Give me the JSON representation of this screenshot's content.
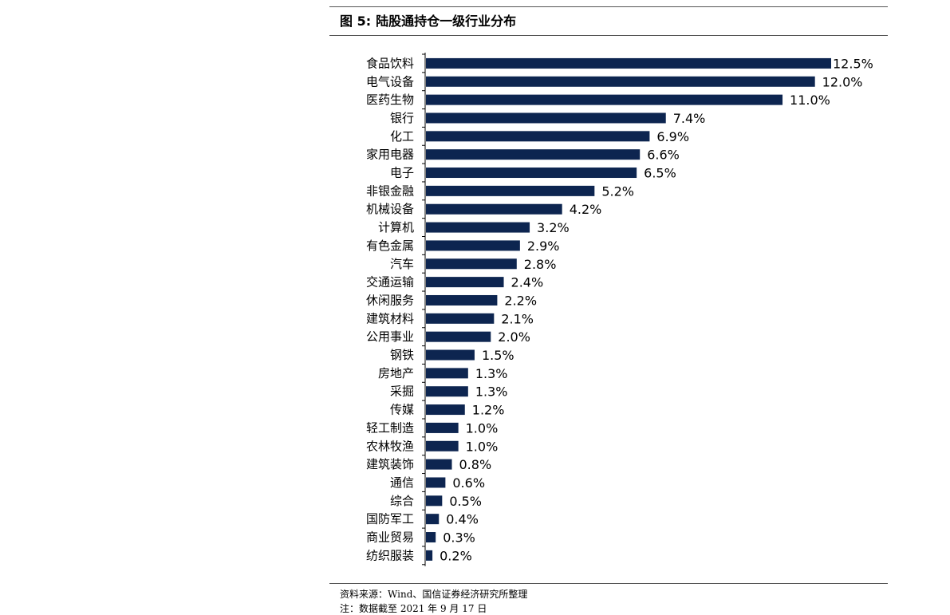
{
  "figure": {
    "label": "图 5:",
    "title": "陆股通持仓一级行业分布"
  },
  "chart_data": {
    "type": "bar",
    "orientation": "horizontal",
    "title": "陆股通持仓一级行业分布",
    "xlabel": "",
    "ylabel": "",
    "grid": false,
    "legend": "none",
    "bar_color": "#0d2550",
    "value_suffix": "%",
    "xlim": [
      0,
      12.5
    ],
    "categories": [
      "食品饮料",
      "电气设备",
      "医药生物",
      "银行",
      "化工",
      "家用电器",
      "电子",
      "非银金融",
      "机械设备",
      "计算机",
      "有色金属",
      "汽车",
      "交通运输",
      "休闲服务",
      "建筑材料",
      "公用事业",
      "钢铁",
      "房地产",
      "采掘",
      "传媒",
      "轻工制造",
      "农林牧渔",
      "建筑装饰",
      "通信",
      "综合",
      "国防军工",
      "商业贸易",
      "纺织服装"
    ],
    "values": [
      12.5,
      12.0,
      11.0,
      7.4,
      6.9,
      6.6,
      6.5,
      5.2,
      4.2,
      3.2,
      2.9,
      2.8,
      2.4,
      2.2,
      2.1,
      2.0,
      1.5,
      1.3,
      1.3,
      1.2,
      1.0,
      1.0,
      0.8,
      0.6,
      0.5,
      0.4,
      0.3,
      0.2
    ]
  },
  "footer": {
    "source": "资料来源：Wind、国信证券经济研究所整理",
    "note": "注：数据截至 2021 年 9 月 17 日"
  }
}
